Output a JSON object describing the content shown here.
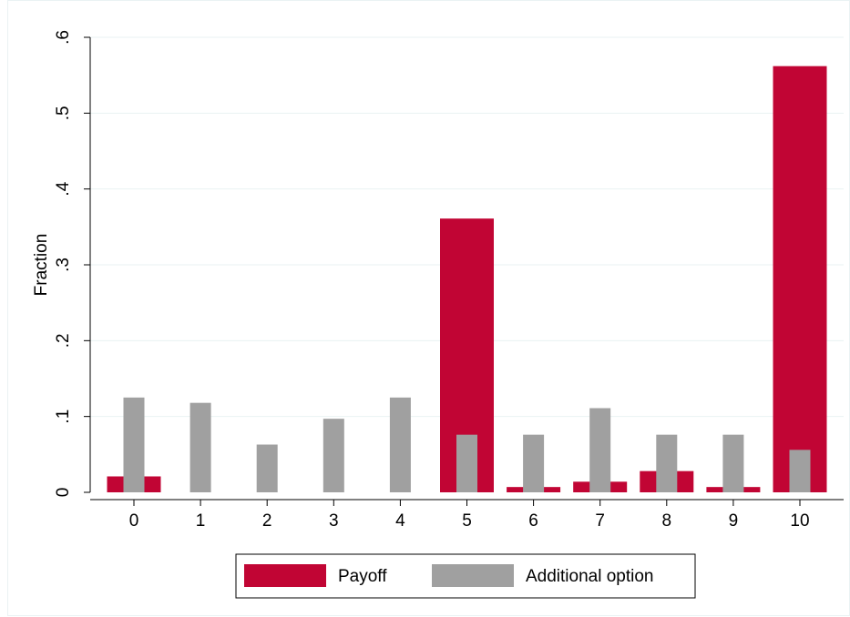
{
  "chart_data": {
    "type": "bar",
    "categories": [
      "0",
      "1",
      "2",
      "3",
      "4",
      "5",
      "6",
      "7",
      "8",
      "9",
      "10"
    ],
    "series": [
      {
        "name": "Payoff",
        "color": "#c10534",
        "values": [
          0.021,
          0,
          0,
          0,
          0,
          0.361,
          0.007,
          0.014,
          0.028,
          0.007,
          0.562
        ]
      },
      {
        "name": "Additional option",
        "color": "#a0a0a0",
        "values": [
          0.125,
          0.118,
          0.063,
          0.097,
          0.125,
          0.076,
          0.076,
          0.111,
          0.076,
          0.076,
          0.056
        ]
      }
    ],
    "title": "",
    "xlabel": "",
    "ylabel": "Fraction",
    "ylim": [
      0,
      0.6
    ],
    "yticks": [
      0,
      0.1,
      0.2,
      0.3,
      0.4,
      0.5,
      0.6
    ],
    "ytick_labels": [
      "0",
      ".1",
      ".2",
      ".3",
      ".4",
      ".5",
      ".6"
    ],
    "grid": true,
    "legend_position": "bottom"
  }
}
